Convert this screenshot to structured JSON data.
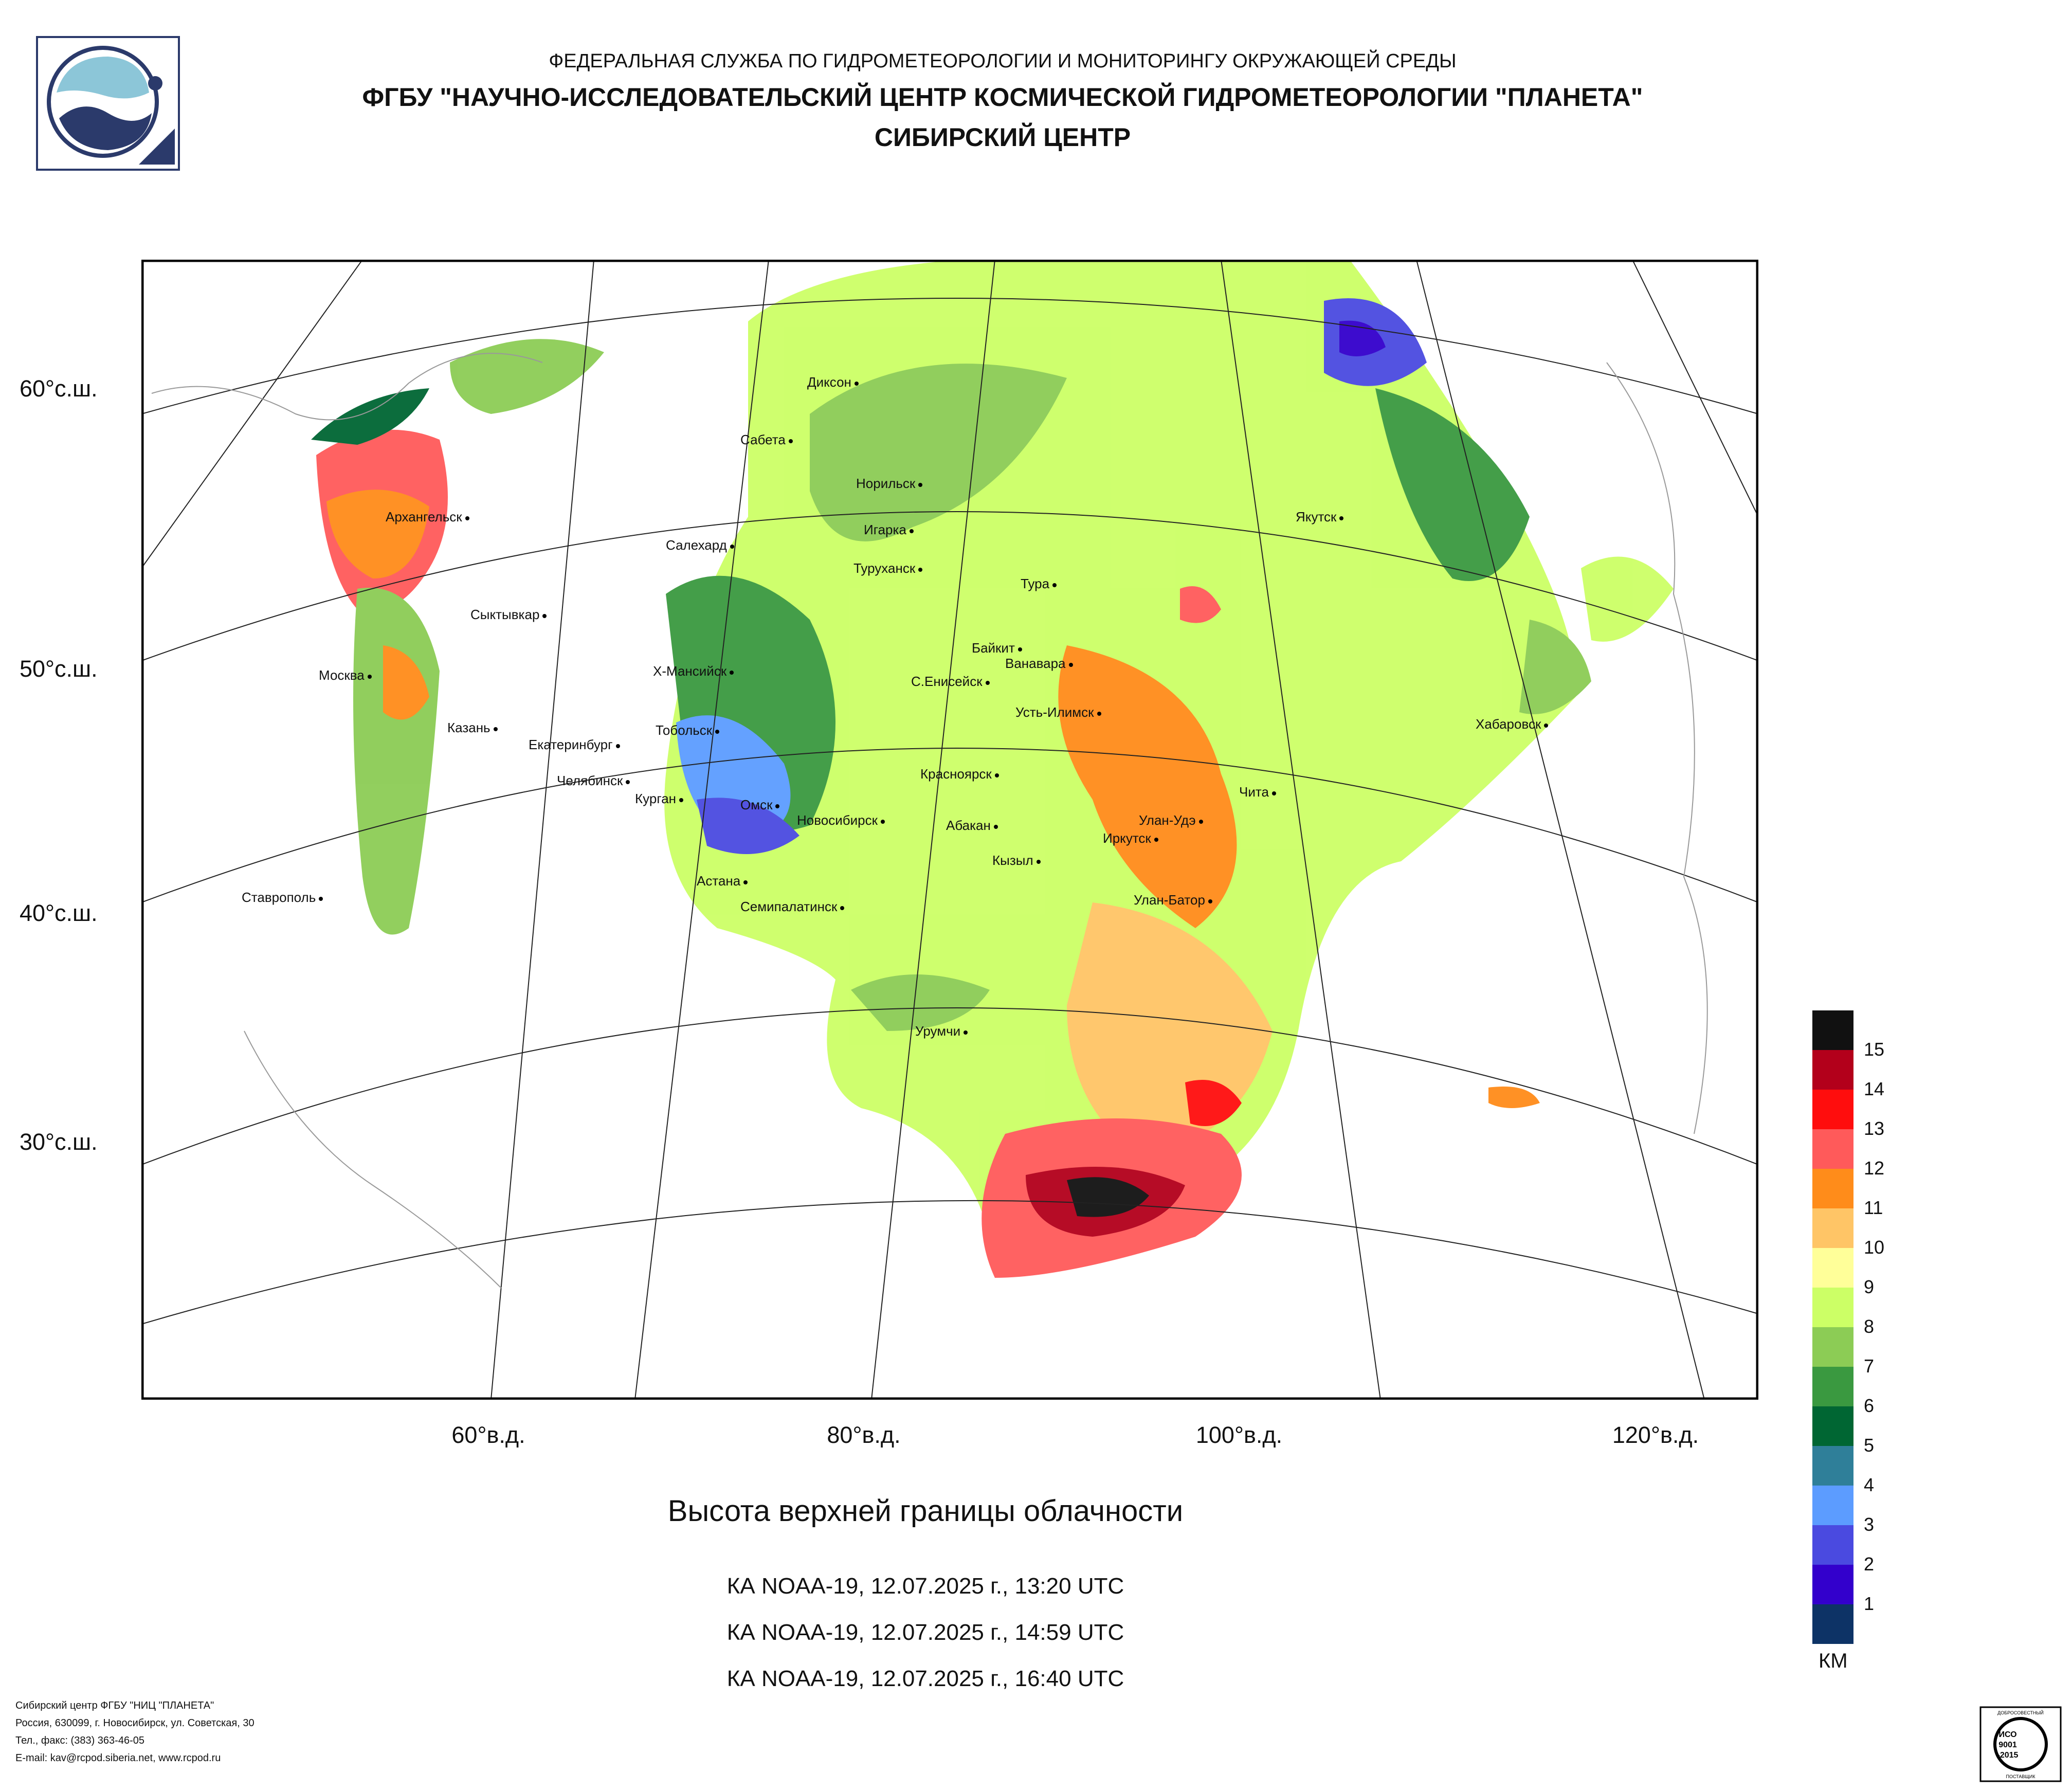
{
  "header": {
    "line1": "ФЕДЕРАЛЬНАЯ СЛУЖБА ПО ГИДРОМЕТЕОРОЛОГИИ И МОНИТОРИНГУ ОКРУЖАЮЩЕЙ СРЕДЫ",
    "line2": "ФГБУ \"НАУЧНО-ИССЛЕДОВАТЕЛЬСКИЙ ЦЕНТР КОСМИЧЕСКОЙ ГИДРОМЕТЕОРОЛОГИИ \"ПЛАНЕТА\"",
    "line3": "СИБИРСКИЙ ЦЕНТР"
  },
  "map": {
    "lat_labels": [
      "60°с.ш.",
      "50°с.ш.",
      "40°с.ш.",
      "30°с.ш."
    ],
    "lon_labels": [
      "60°в.д.",
      "80°в.д.",
      "100°в.д.",
      "120°в.д."
    ],
    "cities": [
      "Диксон",
      "Сабета",
      "Норильск",
      "Архангельск",
      "Салехард",
      "Игарка",
      "Туруханск",
      "Якутск",
      "Тура",
      "Сыктывкар",
      "Байкит",
      "Ванавара",
      "Москва",
      "Х-Мансийск",
      "С.Енисейск",
      "Усть-Илимск",
      "Казань",
      "Тобольск",
      "Хабаровск",
      "Екатеринбург",
      "Челябинск",
      "Курган",
      "Красноярск",
      "Чита",
      "Омск",
      "Новосибирск",
      "Абакан",
      "Улан-Удэ",
      "Иркутск",
      "Кызыл",
      "Астана",
      "Ставрополь",
      "Семипалатинск",
      "Улан-Батор",
      "Урумчи"
    ]
  },
  "product": {
    "title": "Высота верхней границы облачности",
    "passes": [
      "КА NOAA-19, 12.07.2025 г., 13:20 UTC",
      "КА NOAA-19, 12.07.2025 г., 14:59 UTC",
      "КА NOAA-19, 12.07.2025 г., 16:40 UTC"
    ]
  },
  "legend": {
    "unit": "КМ",
    "levels": [
      "15",
      "14",
      "13",
      "12",
      "11",
      "10",
      "9",
      "8",
      "7",
      "6",
      "5",
      "4",
      "3",
      "2",
      "1"
    ],
    "colors": [
      "#111111",
      "#b3001b",
      "#ff0d0d",
      "#ff5a5a",
      "#ff8c1a",
      "#ffc566",
      "#ffff99",
      "#ccff66",
      "#8ccc55",
      "#3a9940",
      "#006633",
      "#2f7f99",
      "#5c9cff",
      "#4a4ae0",
      "#3300cc",
      "#0d3366"
    ]
  },
  "footer": {
    "lines": [
      "Сибирский центр ФГБУ \"НИЦ \"ПЛАНЕТА\"",
      "Россия, 630099, г. Новосибирск, ул. Советская, 30",
      "Тел., факс: (383) 363-46-05",
      "E-mail: kav@rcpod.siberia.net, www.rcpod.ru"
    ],
    "iso_text": [
      "ДОБРОСОВЕСТНЫЙ",
      "ИСО",
      "9001",
      "-2015",
      "ПОСТАВЩИК"
    ]
  }
}
